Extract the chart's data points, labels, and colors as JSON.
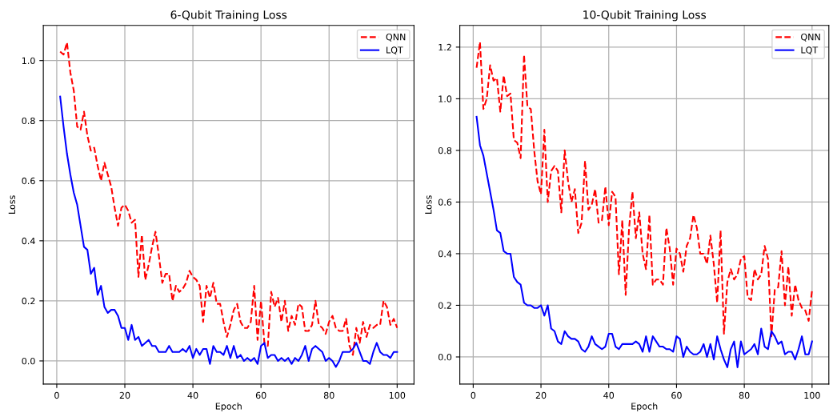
{
  "chart_data": [
    {
      "type": "line",
      "title": "6-Qubit Training Loss",
      "xlabel": "Epoch",
      "ylabel": "Loss",
      "x": [
        1,
        2,
        3,
        4,
        5,
        6,
        7,
        8,
        9,
        10,
        11,
        12,
        13,
        14,
        15,
        16,
        17,
        18,
        19,
        20,
        21,
        22,
        23,
        24,
        25,
        26,
        27,
        28,
        29,
        30,
        31,
        32,
        33,
        34,
        35,
        36,
        37,
        38,
        39,
        40,
        41,
        42,
        43,
        44,
        45,
        46,
        47,
        48,
        49,
        50,
        51,
        52,
        53,
        54,
        55,
        56,
        57,
        58,
        59,
        60,
        61,
        62,
        63,
        64,
        65,
        66,
        67,
        68,
        69,
        70,
        71,
        72,
        73,
        74,
        75,
        76,
        77,
        78,
        79,
        80,
        81,
        82,
        83,
        84,
        85,
        86,
        87,
        88,
        89,
        90,
        91,
        92,
        93,
        94,
        95,
        96,
        97,
        98,
        99,
        100
      ],
      "series": [
        {
          "name": "QNN",
          "color": "#ff0000",
          "line_style": "dashed",
          "values": [
            1.03,
            1.02,
            1.06,
            0.96,
            0.9,
            0.78,
            0.77,
            0.83,
            0.75,
            0.7,
            0.71,
            0.65,
            0.6,
            0.66,
            0.62,
            0.58,
            0.51,
            0.45,
            0.51,
            0.52,
            0.5,
            0.46,
            0.47,
            0.28,
            0.42,
            0.27,
            0.32,
            0.38,
            0.43,
            0.35,
            0.26,
            0.29,
            0.29,
            0.2,
            0.25,
            0.23,
            0.24,
            0.26,
            0.3,
            0.28,
            0.27,
            0.25,
            0.13,
            0.25,
            0.21,
            0.26,
            0.19,
            0.19,
            0.13,
            0.08,
            0.12,
            0.17,
            0.19,
            0.13,
            0.11,
            0.11,
            0.13,
            0.25,
            0.07,
            0.2,
            0.06,
            0.05,
            0.23,
            0.18,
            0.21,
            0.13,
            0.2,
            0.1,
            0.15,
            0.12,
            0.19,
            0.18,
            0.1,
            0.1,
            0.12,
            0.2,
            0.12,
            0.11,
            0.09,
            0.13,
            0.15,
            0.11,
            0.1,
            0.1,
            0.14,
            0.05,
            0.02,
            0.11,
            0.06,
            0.13,
            0.08,
            0.12,
            0.11,
            0.12,
            0.12,
            0.2,
            0.18,
            0.12,
            0.14,
            0.11
          ]
        },
        {
          "name": "LQT",
          "color": "#0000ff",
          "line_style": "solid",
          "values": [
            0.88,
            0.78,
            0.69,
            0.62,
            0.56,
            0.52,
            0.45,
            0.38,
            0.37,
            0.29,
            0.31,
            0.22,
            0.25,
            0.18,
            0.16,
            0.17,
            0.17,
            0.15,
            0.11,
            0.11,
            0.07,
            0.12,
            0.07,
            0.08,
            0.05,
            0.06,
            0.07,
            0.05,
            0.05,
            0.03,
            0.03,
            0.03,
            0.05,
            0.03,
            0.03,
            0.03,
            0.04,
            0.03,
            0.05,
            0.01,
            0.04,
            0.02,
            0.04,
            0.04,
            -0.01,
            0.05,
            0.03,
            0.03,
            0.02,
            0.05,
            0.01,
            0.05,
            0.01,
            0.02,
            0.0,
            0.01,
            0.0,
            0.01,
            -0.01,
            0.05,
            0.06,
            0.01,
            0.02,
            0.02,
            0.0,
            0.01,
            0.0,
            0.01,
            -0.01,
            0.01,
            0.0,
            0.02,
            0.05,
            0.0,
            0.04,
            0.05,
            0.04,
            0.03,
            0.0,
            0.01,
            0.0,
            -0.02,
            0.0,
            0.03,
            0.03,
            0.03,
            0.04,
            0.06,
            0.03,
            0.0,
            0.0,
            -0.01,
            0.03,
            0.06,
            0.03,
            0.02,
            0.02,
            0.01,
            0.03,
            0.03
          ]
        }
      ],
      "xlim": [
        -3.95,
        104.95
      ],
      "xticks": [
        0,
        20,
        40,
        60,
        80,
        100
      ],
      "ylim": [
        -0.077,
        1.117
      ],
      "yticks": [
        {
          "value": 0,
          "label": "0.0"
        },
        {
          "value": 0.2,
          "label": "0.2"
        },
        {
          "value": 0.4,
          "label": "0.4"
        },
        {
          "value": 0.6,
          "label": "0.6"
        },
        {
          "value": 0.8,
          "label": "0.8"
        },
        {
          "value": 1,
          "label": "1.0"
        }
      ],
      "grid": true,
      "legend": "top right",
      "marker": "none"
    },
    {
      "type": "line",
      "title": "10-Qubit Training Loss",
      "xlabel": "Epoch",
      "ylabel": "Loss",
      "x": [
        1,
        2,
        3,
        4,
        5,
        6,
        7,
        8,
        9,
        10,
        11,
        12,
        13,
        14,
        15,
        16,
        17,
        18,
        19,
        20,
        21,
        22,
        23,
        24,
        25,
        26,
        27,
        28,
        29,
        30,
        31,
        32,
        33,
        34,
        35,
        36,
        37,
        38,
        39,
        40,
        41,
        42,
        43,
        44,
        45,
        46,
        47,
        48,
        49,
        50,
        51,
        52,
        53,
        54,
        55,
        56,
        57,
        58,
        59,
        60,
        61,
        62,
        63,
        64,
        65,
        66,
        67,
        68,
        69,
        70,
        71,
        72,
        73,
        74,
        75,
        76,
        77,
        78,
        79,
        80,
        81,
        82,
        83,
        84,
        85,
        86,
        87,
        88,
        89,
        90,
        91,
        92,
        93,
        94,
        95,
        96,
        97,
        98,
        99,
        100
      ],
      "series": [
        {
          "name": "QNN",
          "color": "#ff0000",
          "line_style": "dashed",
          "values": [
            1.12,
            1.22,
            0.96,
            1.0,
            1.13,
            1.07,
            1.08,
            0.95,
            1.09,
            1.01,
            1.02,
            0.84,
            0.83,
            0.77,
            1.17,
            0.97,
            0.96,
            0.8,
            0.68,
            0.63,
            0.88,
            0.6,
            0.72,
            0.74,
            0.72,
            0.56,
            0.8,
            0.68,
            0.6,
            0.65,
            0.48,
            0.52,
            0.76,
            0.57,
            0.59,
            0.65,
            0.52,
            0.53,
            0.66,
            0.51,
            0.64,
            0.62,
            0.32,
            0.53,
            0.24,
            0.5,
            0.64,
            0.46,
            0.56,
            0.4,
            0.34,
            0.55,
            0.28,
            0.3,
            0.3,
            0.28,
            0.5,
            0.42,
            0.28,
            0.42,
            0.4,
            0.33,
            0.43,
            0.46,
            0.55,
            0.5,
            0.4,
            0.4,
            0.36,
            0.47,
            0.36,
            0.21,
            0.49,
            0.09,
            0.29,
            0.34,
            0.3,
            0.32,
            0.38,
            0.39,
            0.23,
            0.22,
            0.34,
            0.3,
            0.32,
            0.43,
            0.38,
            0.08,
            0.26,
            0.27,
            0.41,
            0.2,
            0.35,
            0.16,
            0.28,
            0.22,
            0.19,
            0.18,
            0.14,
            0.26
          ]
        },
        {
          "name": "LQT",
          "color": "#0000ff",
          "line_style": "solid",
          "values": [
            0.93,
            0.82,
            0.78,
            0.71,
            0.64,
            0.57,
            0.49,
            0.48,
            0.41,
            0.4,
            0.4,
            0.31,
            0.29,
            0.28,
            0.21,
            0.2,
            0.2,
            0.19,
            0.19,
            0.2,
            0.16,
            0.2,
            0.11,
            0.1,
            0.06,
            0.05,
            0.1,
            0.08,
            0.07,
            0.07,
            0.06,
            0.03,
            0.02,
            0.04,
            0.08,
            0.05,
            0.04,
            0.03,
            0.04,
            0.09,
            0.09,
            0.04,
            0.03,
            0.05,
            0.05,
            0.05,
            0.05,
            0.06,
            0.05,
            0.02,
            0.08,
            0.02,
            0.08,
            0.06,
            0.04,
            0.04,
            0.03,
            0.03,
            0.02,
            0.08,
            0.07,
            0.0,
            0.04,
            0.02,
            0.01,
            0.01,
            0.02,
            0.05,
            0.0,
            0.05,
            -0.01,
            0.08,
            0.03,
            -0.01,
            -0.04,
            0.03,
            0.06,
            -0.04,
            0.06,
            0.01,
            0.02,
            0.03,
            0.05,
            0.01,
            0.11,
            0.04,
            0.03,
            0.1,
            0.08,
            0.05,
            0.06,
            0.01,
            0.02,
            0.02,
            -0.01,
            0.03,
            0.08,
            0.01,
            0.01,
            0.06
          ]
        }
      ],
      "xlim": [
        -3.95,
        104.95
      ],
      "xticks": [
        0,
        20,
        40,
        60,
        80,
        100
      ],
      "ylim": [
        -0.105,
        1.284
      ],
      "yticks": [
        {
          "value": 0,
          "label": "0.0"
        },
        {
          "value": 0.2,
          "label": "0.2"
        },
        {
          "value": 0.4,
          "label": "0.4"
        },
        {
          "value": 0.6,
          "label": "0.6"
        },
        {
          "value": 0.8,
          "label": "0.8"
        },
        {
          "value": 1,
          "label": "1.0"
        },
        {
          "value": 1.2,
          "label": "1.2"
        }
      ],
      "grid": true,
      "legend": "top right",
      "marker": "none"
    }
  ]
}
